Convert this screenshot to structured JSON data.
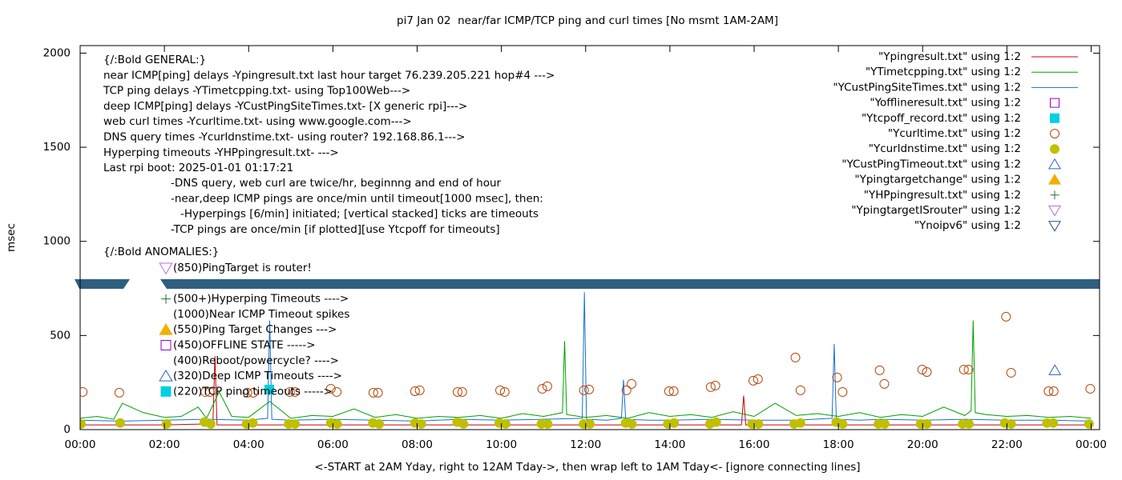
{
  "chart_data": {
    "type": "scatter",
    "title": "pi7 Jan 02  near/far ICMP/TCP ping and curl times [No msmt 1AM-2AM]",
    "x_label": "<-START at 2AM Yday, right to 12AM Tday->, then wrap left to 1AM Tday<- [ignore connecting lines]",
    "y_label": "msec",
    "xlim": [
      0,
      24.2
    ],
    "ylim": [
      0,
      2040
    ],
    "xticks": [
      {
        "value": 0,
        "label": "00:00"
      },
      {
        "value": 2,
        "label": "02:00"
      },
      {
        "value": 4,
        "label": "04:00"
      },
      {
        "value": 6,
        "label": "06:00"
      },
      {
        "value": 8,
        "label": "08:00"
      },
      {
        "value": 10,
        "label": "10:00"
      },
      {
        "value": 12,
        "label": "12:00"
      },
      {
        "value": 14,
        "label": "14:00"
      },
      {
        "value": 16,
        "label": "16:00"
      },
      {
        "value": 18,
        "label": "18:00"
      },
      {
        "value": 20,
        "label": "20:00"
      },
      {
        "value": 22,
        "label": "22:00"
      },
      {
        "value": 24,
        "label": "00:00"
      }
    ],
    "yticks": [
      0,
      500,
      1000,
      1500,
      2000
    ],
    "grid": false,
    "legend_position": "top-right",
    "series": [
      {
        "name": "\"Ypingresult.txt\" using 1:2",
        "color": "#cc0000",
        "marker": "line",
        "x": [
          0,
          1,
          2,
          3,
          3.15,
          3.2,
          3.25,
          4,
          6,
          8,
          10,
          12,
          14,
          15.7,
          15.75,
          15.8,
          16,
          18,
          20,
          22,
          24
        ],
        "values": [
          25,
          25,
          25,
          30,
          25,
          390,
          25,
          25,
          25,
          25,
          25,
          25,
          25,
          25,
          180,
          25,
          25,
          25,
          25,
          25,
          25
        ]
      },
      {
        "name": "\"YTimetcpping.txt\" using 1:2",
        "color": "#00a000",
        "marker": "line",
        "x": [
          0,
          0.4,
          0.8,
          1.0,
          1.5,
          2.0,
          2.4,
          2.8,
          3.0,
          3.3,
          3.6,
          4.0,
          4.5,
          5.0,
          5.5,
          6.0,
          6.5,
          7.0,
          7.5,
          8.0,
          8.5,
          9.0,
          9.5,
          10.0,
          10.5,
          11.0,
          11.45,
          11.5,
          11.55,
          12.0,
          12.5,
          13.0,
          13.5,
          14.0,
          14.5,
          15.0,
          15.5,
          16.0,
          16.5,
          17.0,
          17.5,
          18.0,
          18.5,
          19.0,
          19.5,
          20.0,
          20.5,
          21.0,
          21.15,
          21.2,
          21.25,
          21.5,
          22.0,
          22.5,
          23.0,
          23.5,
          24.0
        ],
        "values": [
          60,
          70,
          55,
          140,
          90,
          65,
          70,
          120,
          60,
          200,
          70,
          65,
          150,
          60,
          75,
          70,
          110,
          65,
          80,
          60,
          70,
          65,
          75,
          60,
          85,
          70,
          90,
          470,
          80,
          65,
          75,
          60,
          90,
          70,
          80,
          65,
          95,
          70,
          140,
          75,
          85,
          70,
          90,
          65,
          80,
          70,
          120,
          75,
          100,
          580,
          90,
          80,
          70,
          75,
          65,
          70,
          60
        ]
      },
      {
        "name": "\"YCustPingSiteTimes.txt\" using 1:2",
        "color": "#1a6fd0",
        "marker": "line",
        "x": [
          0,
          1,
          2,
          3,
          4,
          4.45,
          4.5,
          4.55,
          5,
          6,
          7,
          8,
          9,
          10,
          11,
          11.92,
          11.97,
          12.02,
          12.5,
          12.85,
          12.9,
          12.95,
          13.5,
          14,
          15,
          16,
          17,
          17.85,
          17.9,
          17.95,
          18.5,
          19,
          20,
          21,
          22,
          23,
          24
        ],
        "values": [
          50,
          45,
          50,
          55,
          50,
          60,
          580,
          55,
          50,
          55,
          50,
          45,
          55,
          50,
          55,
          60,
          730,
          55,
          50,
          60,
          265,
          55,
          50,
          50,
          55,
          50,
          50,
          60,
          455,
          55,
          50,
          55,
          50,
          55,
          50,
          50,
          45
        ]
      },
      {
        "name": "\"Yofflineresult.txt\" using 1:2",
        "color": "#9400d3",
        "marker": "open-square",
        "x": [],
        "values": []
      },
      {
        "name": "\"Ytcpoff_record.txt\" using 1:2",
        "color": "#00d0e0",
        "marker": "filled-square",
        "x": [
          4.49
        ],
        "values": [
          213
        ]
      },
      {
        "name": "\"Ycurltime.txt\" using 1:2",
        "color": "#b5470b",
        "marker": "open-circle",
        "x": [
          0.06,
          0.93,
          2.97,
          3.08,
          3.97,
          4.11,
          4.98,
          5.1,
          5.95,
          6.09,
          6.96,
          7.07,
          7.95,
          8.06,
          8.96,
          9.07,
          9.97,
          10.08,
          10.97,
          11.09,
          11.96,
          12.08,
          12.97,
          13.09,
          13.98,
          14.09,
          14.97,
          15.08,
          15.98,
          16.09,
          16.98,
          17.1,
          17.97,
          18.1,
          18.98,
          19.09,
          19.99,
          20.1,
          20.98,
          21.09,
          21.98,
          22.1,
          22.99,
          23.11,
          23.98
        ],
        "values": [
          200,
          196,
          200,
          200,
          196,
          196,
          200,
          200,
          217,
          200,
          196,
          196,
          204,
          209,
          200,
          200,
          209,
          200,
          217,
          230,
          209,
          213,
          209,
          243,
          204,
          204,
          226,
          234,
          260,
          268,
          383,
          209,
          277,
          200,
          315,
          243,
          319,
          306,
          319,
          319,
          600,
          302,
          204,
          204,
          217
        ]
      },
      {
        "name": "\"Ycurldnstime.txt\" using 1:2",
        "color": "#c0c000",
        "marker": "filled-circle",
        "x": [
          0.02,
          0.95,
          2.05,
          2.95,
          3.1,
          3.95,
          4.1,
          4.95,
          5.1,
          5.95,
          6.1,
          6.95,
          7.1,
          7.95,
          8.1,
          8.95,
          9.1,
          9.95,
          10.1,
          10.95,
          11.1,
          11.95,
          12.1,
          12.95,
          13.1,
          13.95,
          14.1,
          14.95,
          15.1,
          15.95,
          16.1,
          16.95,
          17.1,
          17.95,
          18.1,
          18.95,
          19.1,
          19.95,
          20.1,
          20.95,
          21.1,
          21.95,
          22.1,
          22.95,
          23.1,
          23.95
        ],
        "values": [
          30,
          35,
          30,
          40,
          30,
          30,
          35,
          30,
          30,
          35,
          30,
          35,
          30,
          35,
          30,
          40,
          30,
          35,
          30,
          30,
          30,
          30,
          30,
          35,
          30,
          30,
          35,
          30,
          40,
          30,
          30,
          30,
          35,
          40,
          30,
          30,
          30,
          30,
          30,
          30,
          30,
          35,
          30,
          35,
          35,
          30
        ]
      },
      {
        "name": "\"YCustPingTimeout.txt\" using 1:2",
        "color": "#3060c0",
        "marker": "open-triangle-up",
        "x": [
          23.14
        ],
        "values": [
          315
        ]
      },
      {
        "name": "\"Ypingtargetchange\" using 1:2",
        "color": "#f0b000",
        "marker": "filled-triangle-up",
        "x": [],
        "values": []
      },
      {
        "name": "\"YHPpingresult.txt\" using 1:2",
        "color": "#207040",
        "marker": "plus",
        "x": [],
        "values": []
      },
      {
        "name": "\"YpingtargetISrouter\" using 1:2",
        "color": "#b070e0",
        "marker": "open-triangle-down",
        "x": [],
        "values": []
      },
      {
        "name": "\"Ynoipv6\" using 1:2",
        "color": "#2a4a8a",
        "marker": "open-triangle-down",
        "x": [],
        "values": []
      }
    ],
    "annotations": {
      "general": [
        "{/:Bold GENERAL:}",
        "near ICMP[ping] delays -Ypingresult.txt last hour target 76.239.205.221 hop#4 --->",
        "TCP ping delays -YTimetcpping.txt- using Top100Web--->",
        "deep ICMP[ping] delays -YCustPingSiteTimes.txt- [X generic rpi]--->",
        "web curl times -Ycurltime.txt- using www.google.com--->",
        "DNS query times -Ycurldnstime.txt- using router? 192.168.86.1--->",
        "Hyperping timeouts -YHPpingresult.txt- --->",
        "Last rpi boot: 2025-01-01 01:17:21"
      ],
      "notes": [
        "-DNS query, web curl are twice/hr, beginnng and end of hour",
        "-near,deep ICMP pings are once/min until timeout[1000 msec], then:",
        "-Hyperpings [6/min] initiated; [vertical stacked] ticks are timeouts",
        "-TCP pings are once/min [if plotted][use Ytcpoff for timeouts]"
      ],
      "anomalies_header": "{/:Bold ANOMALIES:}",
      "anomalies": [
        {
          "text": "(850)PingTarget is router!",
          "marker": "open-triangle-down",
          "color": "#b070e0"
        },
        {
          "text": "(500+)Hyperping Timeouts ---->",
          "marker": "plus",
          "color": "#207040"
        },
        {
          "text": "(1000)Near ICMP Timeout spikes",
          "marker": "none",
          "color": "#000000"
        },
        {
          "text": "(550)Ping Target Changes --->",
          "marker": "filled-triangle-up",
          "color": "#f0b000"
        },
        {
          "text": "(450)OFFLINE STATE ----->",
          "marker": "open-square",
          "color": "#9400d3"
        },
        {
          "text": "(400)Reboot/powercycle? ---->",
          "marker": "none",
          "color": "#000000"
        },
        {
          "text": "(320)Deep ICMP Timeouts ---->",
          "marker": "open-triangle-up",
          "color": "#3060c0"
        },
        {
          "text": "(220)TCP ping timeouts ----->",
          "marker": "filled-square",
          "color": "#00d0e0"
        }
      ]
    }
  }
}
